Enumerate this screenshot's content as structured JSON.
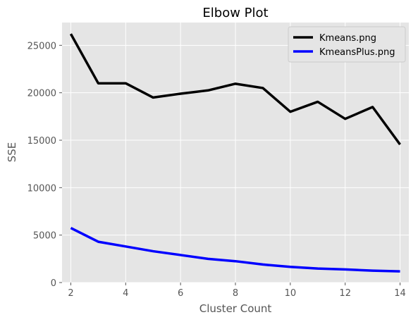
{
  "chart_data": {
    "type": "line",
    "title": "Elbow Plot",
    "xlabel": "Cluster Count",
    "ylabel": "SSE",
    "xlim": [
      1.68,
      14.32
    ],
    "ylim": [
      0,
      27400
    ],
    "xticks": [
      2,
      4,
      6,
      8,
      10,
      12,
      14
    ],
    "yticks": [
      0,
      5000,
      10000,
      15000,
      20000,
      25000
    ],
    "grid": true,
    "legend_position": "top-right",
    "x": [
      2,
      3,
      4,
      5,
      6,
      7,
      8,
      9,
      10,
      11,
      12,
      13,
      14
    ],
    "series": [
      {
        "name": "Kmeans.png",
        "color": "#000000",
        "values": [
          26200,
          21000,
          21000,
          19500,
          19900,
          20250,
          20950,
          20500,
          18000,
          19050,
          17250,
          18500,
          14550
        ]
      },
      {
        "name": "KmeansPlus.png",
        "color": "#0000ff",
        "values": [
          5750,
          4300,
          3800,
          3300,
          2900,
          2500,
          2250,
          1900,
          1650,
          1480,
          1380,
          1250,
          1180
        ]
      }
    ]
  }
}
